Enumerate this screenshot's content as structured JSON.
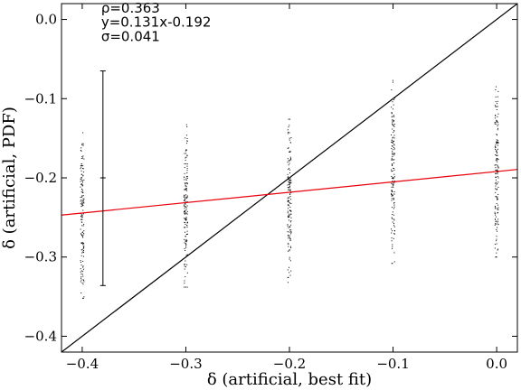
{
  "chart_data": {
    "type": "scatter",
    "xlabel": "δ (artificial, best fit)",
    "ylabel": "δ (artificial, PDF)",
    "xlim": [
      -0.42,
      0.02
    ],
    "ylim": [
      -0.42,
      0.02
    ],
    "xticks": [
      -0.4,
      -0.3,
      -0.2,
      -0.1,
      0.0
    ],
    "xtick_labels": [
      "−0.4",
      "−0.3",
      "−0.2",
      "−0.1",
      "0.0"
    ],
    "yticks": [
      -0.4,
      -0.3,
      -0.2,
      -0.1,
      0.0
    ],
    "ytick_labels": [
      "−0.4",
      "−0.3",
      "−0.2",
      "−0.1",
      "0.0"
    ],
    "grid": false,
    "colors": {
      "points": "#000000",
      "identity": "#000000",
      "fit": "#e8000b",
      "errorbar": "#000000"
    },
    "annotations": [
      "ρ=0.363",
      "y=0.131x-0.192",
      "σ=0.041"
    ],
    "fit": {
      "slope": 0.131,
      "intercept": -0.192
    },
    "identity_line": true,
    "columns": [
      {
        "x": -0.4,
        "y_min": -0.352,
        "y_max": -0.143
      },
      {
        "x": -0.3,
        "y_min": -0.338,
        "y_max": -0.133
      },
      {
        "x": -0.2,
        "y_min": -0.332,
        "y_max": -0.126
      },
      {
        "x": -0.1,
        "y_min": -0.308,
        "y_max": -0.077
      },
      {
        "x": 0.0,
        "y_min": -0.3,
        "y_max": -0.085
      }
    ],
    "errorbar": {
      "x": -0.38,
      "y": -0.2,
      "y_low": -0.336,
      "y_high": -0.065
    }
  }
}
